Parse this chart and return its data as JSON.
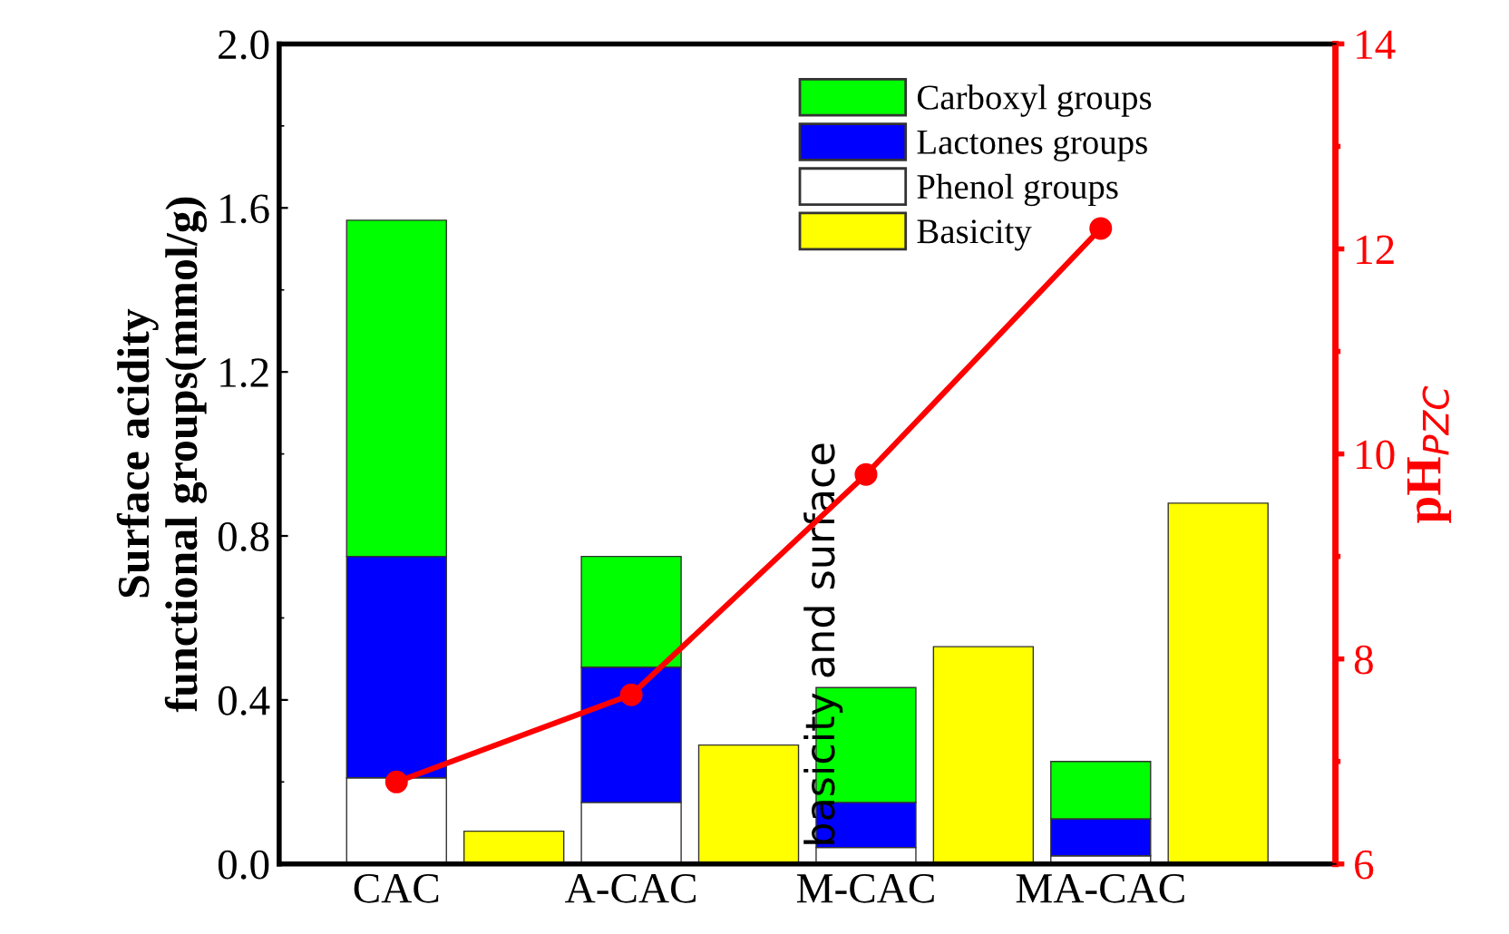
{
  "chart_data": {
    "type": "bar",
    "stacked": true,
    "categories": [
      "CAC",
      null,
      "A-CAC",
      null,
      "M-CAC",
      null,
      "MA-CAC",
      null
    ],
    "ylabel": "Surface acidity\nfunctional groups(mmol/g)",
    "y2label": "pH$_{PZC}$",
    "annotations": [
      "basicity and surface"
    ],
    "series": [
      {
        "name": "Phenol groups",
        "color": "#ffffff",
        "values": [
          0.21,
          null,
          0.15,
          null,
          0.04,
          null,
          0.02,
          null
        ]
      },
      {
        "name": "Lactones groups",
        "color": "#0000ff",
        "values": [
          0.54,
          null,
          0.33,
          null,
          0.11,
          null,
          0.09,
          null
        ]
      },
      {
        "name": "Carboxyl groups",
        "color": "#00ff00",
        "values": [
          0.82,
          null,
          0.27,
          null,
          0.28,
          null,
          0.14,
          null
        ]
      },
      {
        "name": "Basicity",
        "color": "#ffff00",
        "values": [
          null,
          0.08,
          null,
          0.29,
          null,
          0.53,
          null,
          0.88
        ]
      },
      {
        "type": "line",
        "axis": "y2",
        "color": "#ff0000",
        "marker": "circle",
        "x": [
          "CAC",
          "A-CAC",
          "M-CAC",
          "MA-CAC"
        ],
        "values": [
          6.8,
          7.65,
          9.8,
          12.2
        ]
      }
    ],
    "ylim": [
      0,
      2
    ],
    "yticks": [
      {
        "value": 0,
        "label": "0.0"
      },
      {
        "value": 0.4,
        "label": "0.4"
      },
      {
        "value": 0.8,
        "label": "0.8"
      },
      {
        "value": 1.2,
        "label": "1.2"
      },
      {
        "value": 1.6,
        "label": "1.6"
      },
      {
        "value": 2,
        "label": "2.0"
      }
    ],
    "y2lim": [
      6,
      14
    ],
    "y2ticks": [
      6,
      8,
      10,
      12,
      14
    ],
    "legend": "top right",
    "grid": false
  }
}
